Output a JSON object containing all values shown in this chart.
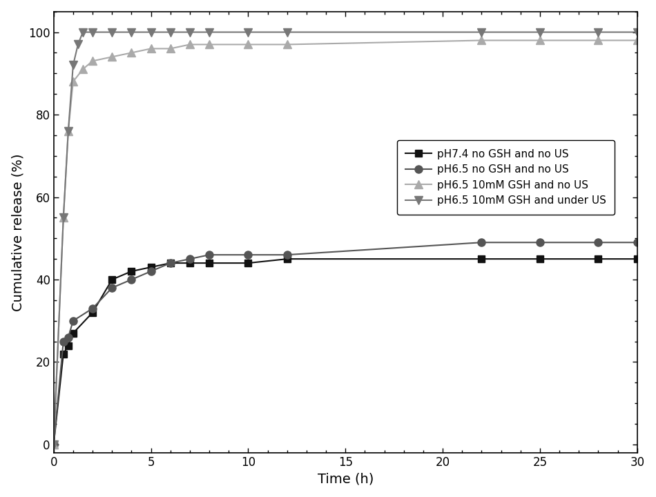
{
  "series": [
    {
      "label": "pH7.4 no GSH and no US",
      "color": "#111111",
      "linestyle": "-",
      "marker": "s",
      "markersize": 7,
      "linewidth": 1.5,
      "x": [
        0,
        0.5,
        0.75,
        1,
        2,
        3,
        4,
        5,
        6,
        7,
        8,
        10,
        12,
        22,
        25,
        28,
        30
      ],
      "y": [
        0,
        22,
        24,
        27,
        32,
        40,
        42,
        43,
        44,
        44,
        44,
        44,
        45,
        45,
        45,
        45,
        45
      ]
    },
    {
      "label": "pH6.5 no GSH and no US",
      "color": "#555555",
      "linestyle": "-",
      "marker": "o",
      "markersize": 8,
      "linewidth": 1.5,
      "x": [
        0,
        0.5,
        0.75,
        1,
        2,
        3,
        4,
        5,
        6,
        7,
        8,
        10,
        12,
        22,
        25,
        28,
        30
      ],
      "y": [
        0,
        25,
        26,
        30,
        33,
        38,
        40,
        42,
        44,
        45,
        46,
        46,
        46,
        49,
        49,
        49,
        49
      ]
    },
    {
      "label": "pH6.5 10mM GSH and no US",
      "color": "#aaaaaa",
      "linestyle": "-",
      "marker": "^",
      "markersize": 8,
      "linewidth": 1.5,
      "x": [
        0,
        0.5,
        0.75,
        1,
        1.5,
        2,
        3,
        4,
        5,
        6,
        7,
        8,
        10,
        12,
        22,
        25,
        28,
        30
      ],
      "y": [
        0,
        55,
        76,
        88,
        91,
        93,
        94,
        95,
        96,
        96,
        97,
        97,
        97,
        97,
        98,
        98,
        98,
        98
      ]
    },
    {
      "label": "pH6.5 10mM GSH and under US",
      "color": "#777777",
      "linestyle": "-",
      "marker": "v",
      "markersize": 8,
      "linewidth": 1.5,
      "x": [
        0,
        0.5,
        0.75,
        1,
        1.25,
        1.5,
        2,
        3,
        4,
        5,
        6,
        7,
        8,
        10,
        12,
        22,
        25,
        28,
        30
      ],
      "y": [
        0,
        55,
        76,
        92,
        97,
        100,
        100,
        100,
        100,
        100,
        100,
        100,
        100,
        100,
        100,
        100,
        100,
        100,
        100
      ]
    }
  ],
  "xlabel": "Time (h)",
  "ylabel": "Cumulative release (%)",
  "xlim": [
    0,
    30
  ],
  "ylim": [
    -2,
    105
  ],
  "xticks": [
    0,
    5,
    10,
    15,
    20,
    25,
    30
  ],
  "yticks": [
    0,
    20,
    40,
    60,
    80,
    100
  ],
  "figsize": [
    9.5,
    7.2
  ],
  "dpi": 100
}
